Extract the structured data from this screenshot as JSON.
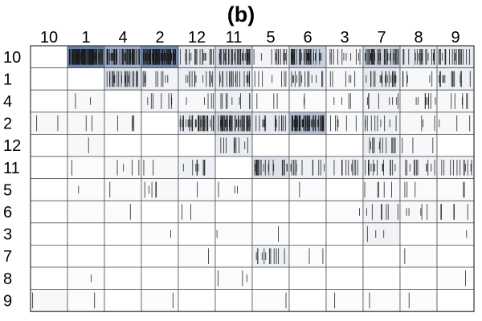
{
  "chart_data": {
    "type": "heatmap",
    "title": "(b)",
    "col_labels": [
      "10",
      "1",
      "4",
      "2",
      "12",
      "11",
      "5",
      "6",
      "3",
      "7",
      "8",
      "9"
    ],
    "row_labels": [
      "10",
      "1",
      "4",
      "2",
      "12",
      "11",
      "5",
      "6",
      "3",
      "7",
      "8",
      "9"
    ],
    "intensity": [
      [
        0,
        0.85,
        0.55,
        0.8,
        0.15,
        0.28,
        0.08,
        0.32,
        0.08,
        0.3,
        0.15,
        0.15
      ],
      [
        0,
        0,
        0.2,
        0.08,
        0.1,
        0.15,
        0.05,
        0.1,
        0.05,
        0.15,
        0.05,
        0.1
      ],
      [
        0,
        0.05,
        0,
        0.08,
        0.05,
        0.1,
        0.03,
        0.03,
        0.03,
        0.08,
        0.05,
        0.05
      ],
      [
        0.05,
        0.05,
        0.05,
        0,
        0.15,
        0.25,
        0.15,
        0.42,
        0.05,
        0.1,
        0.05,
        0.05
      ],
      [
        0,
        0.05,
        0,
        0,
        0,
        0.12,
        0,
        0,
        0,
        0.12,
        0.05,
        0
      ],
      [
        0,
        0.03,
        0.05,
        0.05,
        0.1,
        0,
        0.2,
        0.1,
        0.08,
        0.1,
        0.08,
        0.08
      ],
      [
        0,
        0.03,
        0.03,
        0.05,
        0.03,
        0.03,
        0,
        0.03,
        0,
        0.05,
        0.03,
        0.03
      ],
      [
        0,
        0.03,
        0.03,
        0,
        0.03,
        0,
        0,
        0,
        0.03,
        0.08,
        0.05,
        0.05
      ],
      [
        0,
        0,
        0,
        0.03,
        0,
        0.03,
        0.03,
        0,
        0,
        0.08,
        0,
        0.03
      ],
      [
        0,
        0,
        0,
        0,
        0.03,
        0,
        0.1,
        0.03,
        0,
        0,
        0.03,
        0
      ],
      [
        0,
        0.03,
        0,
        0,
        0,
        0.03,
        0,
        0,
        0,
        0,
        0,
        0.03
      ],
      [
        0.05,
        0.03,
        0,
        0.03,
        0,
        0,
        0.03,
        0,
        0.03,
        0.03,
        0.03,
        0
      ]
    ],
    "events": [
      [
        0,
        110,
        60,
        105,
        22,
        40,
        14,
        45,
        12,
        42,
        22,
        22
      ],
      [
        0,
        0,
        28,
        10,
        14,
        22,
        7,
        15,
        6,
        22,
        7,
        14
      ],
      [
        0,
        2,
        0,
        7,
        5,
        9,
        3,
        2,
        4,
        8,
        9,
        6
      ],
      [
        2,
        2,
        5,
        0,
        38,
        55,
        16,
        70,
        6,
        10,
        3,
        3
      ],
      [
        0,
        1,
        0,
        0,
        0,
        10,
        0,
        0,
        0,
        14,
        3,
        0
      ],
      [
        0,
        1,
        4,
        2,
        9,
        0,
        22,
        12,
        10,
        16,
        12,
        12
      ],
      [
        0,
        1,
        1,
        5,
        1,
        3,
        0,
        1,
        0,
        5,
        3,
        2
      ],
      [
        0,
        0,
        1,
        0,
        2,
        0,
        0,
        0,
        1,
        7,
        5,
        5
      ],
      [
        0,
        0,
        0,
        1,
        0,
        1,
        1,
        0,
        0,
        3,
        0,
        1
      ],
      [
        0,
        0,
        0,
        0,
        1,
        0,
        12,
        2,
        0,
        0,
        1,
        0
      ],
      [
        0,
        1,
        0,
        0,
        0,
        3,
        0,
        0,
        0,
        0,
        0,
        1
      ],
      [
        1,
        1,
        0,
        1,
        0,
        0,
        1,
        0,
        1,
        1,
        1,
        0
      ]
    ],
    "colors": {
      "cell_low": "#ffffff",
      "cell_high": "#4f6c9c",
      "tick": "#1a1a1a",
      "grid": "#555555"
    }
  }
}
